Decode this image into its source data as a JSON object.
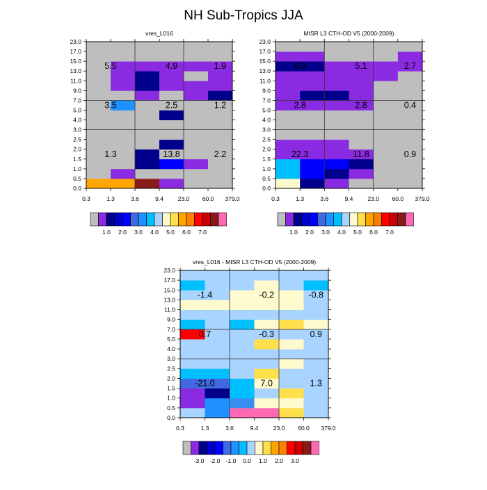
{
  "title": "NH Sub-Tropics JJA",
  "x_tick_labels": [
    "0.3",
    "1.3",
    "3.6",
    "9.4",
    "23.0",
    "60.0",
    "379.0"
  ],
  "y_tick_labels": [
    "0.0",
    "0.5",
    "1.0",
    "1.5",
    "2.0",
    "2.5",
    "3.0",
    "4.0",
    "5.0",
    "7.0",
    "9.0",
    "11.0",
    "13.0",
    "15.0",
    "17.0",
    "23.0"
  ],
  "chart_data": [
    {
      "type": "heatmap",
      "title": "vres_L016",
      "xlabel": "",
      "ylabel": "",
      "x_bins": [
        "0.3",
        "1.3",
        "3.6",
        "9.4",
        "23.0",
        "60.0",
        "379.0"
      ],
      "y_bins": [
        "0.0",
        "0.5",
        "1.0",
        "1.5",
        "2.0",
        "2.5",
        "3.0",
        "4.0",
        "5.0",
        "7.0",
        "9.0",
        "11.0",
        "13.0",
        "15.0",
        "17.0",
        "23.0"
      ],
      "colormap": "abs",
      "cells": [
        [
          "orange",
          "orange",
          "darkred",
          "purple",
          "gray",
          "gray"
        ],
        [
          "gray",
          "purple",
          "gray",
          "gray",
          "gray",
          "gray"
        ],
        [
          "gray",
          "gray",
          "navy",
          "blue",
          "purple",
          "gray"
        ],
        [
          "gray",
          "gray",
          "navy",
          "gray",
          "gray",
          "gray"
        ],
        [
          "gray",
          "gray",
          "gray",
          "navy",
          "gray",
          "gray"
        ],
        [
          "gray",
          "gray",
          "gray",
          "gray",
          "gray",
          "gray"
        ],
        [
          "gray",
          "gray",
          "gray",
          "gray",
          "gray",
          "gray"
        ],
        [
          "gray",
          "gray",
          "gray",
          "navy",
          "gray",
          "gray"
        ],
        [
          "gray",
          "dodger",
          "gray",
          "gray",
          "gray",
          "gray"
        ],
        [
          "gray",
          "gray",
          "purple",
          "gray",
          "purple",
          "navy"
        ],
        [
          "gray",
          "purple",
          "navy",
          "purple",
          "purple",
          "purple"
        ],
        [
          "gray",
          "purple",
          "navy",
          "purple",
          "gray",
          "purple"
        ],
        [
          "gray",
          "purple",
          "purple",
          "purple",
          "purple",
          "purple"
        ],
        [
          "gray",
          "gray",
          "gray",
          "gray",
          "gray",
          "gray"
        ],
        [
          "gray",
          "gray",
          "gray",
          "gray",
          "gray",
          "gray"
        ]
      ],
      "region_values": [
        {
          "label": "5.5",
          "col": 0.5,
          "row": 12
        },
        {
          "label": "4.9",
          "col": 3,
          "row": 12
        },
        {
          "label": "1.9",
          "col": 5,
          "row": 12
        },
        {
          "label": "3.5",
          "col": 0.5,
          "row": 8
        },
        {
          "label": "2.5",
          "col": 3,
          "row": 8
        },
        {
          "label": "1.2",
          "col": 5,
          "row": 8
        },
        {
          "label": "1.3",
          "col": 0.5,
          "row": 3
        },
        {
          "label": "13.8",
          "col": 3,
          "row": 3
        },
        {
          "label": "2.2",
          "col": 5,
          "row": 3
        }
      ]
    },
    {
      "type": "heatmap",
      "title": "MISR L3 CTH-OD V5 (2000-2009)",
      "xlabel": "",
      "ylabel": "",
      "x_bins": [
        "0.3",
        "1.3",
        "3.6",
        "9.4",
        "23.0",
        "60.0",
        "379.0"
      ],
      "y_bins": [
        "0.0",
        "0.5",
        "1.0",
        "1.5",
        "2.0",
        "2.5",
        "3.0",
        "4.0",
        "5.0",
        "7.0",
        "9.0",
        "11.0",
        "13.0",
        "15.0",
        "17.0",
        "23.0"
      ],
      "colormap": "abs",
      "cells": [
        [
          "lightyellow",
          "navy",
          "purple",
          "gray",
          "gray",
          "gray"
        ],
        [
          "deepsky",
          "blue",
          "navy",
          "purple",
          "gray",
          "gray"
        ],
        [
          "deepsky",
          "blue",
          "blue",
          "navy",
          "gray",
          "gray"
        ],
        [
          "purple",
          "purple",
          "purple",
          "purple",
          "gray",
          "gray"
        ],
        [
          "purple",
          "purple",
          "purple",
          "gray",
          "gray",
          "gray"
        ],
        [
          "gray",
          "gray",
          "gray",
          "gray",
          "gray",
          "gray"
        ],
        [
          "gray",
          "gray",
          "gray",
          "gray",
          "gray",
          "gray"
        ],
        [
          "gray",
          "gray",
          "gray",
          "gray",
          "gray",
          "gray"
        ],
        [
          "purple",
          "purple",
          "purple",
          "purple",
          "gray",
          "gray"
        ],
        [
          "purple",
          "navy",
          "navy",
          "purple",
          "gray",
          "gray"
        ],
        [
          "purple",
          "purple",
          "purple",
          "purple",
          "gray",
          "gray"
        ],
        [
          "purple",
          "purple",
          "purple",
          "purple",
          "purple",
          "gray"
        ],
        [
          "navy",
          "navy",
          "purple",
          "purple",
          "purple",
          "purple"
        ],
        [
          "purple",
          "purple",
          "gray",
          "gray",
          "gray",
          "purple"
        ],
        [
          "gray",
          "gray",
          "gray",
          "gray",
          "gray",
          "gray"
        ]
      ],
      "region_values": [
        {
          "label": "6.9",
          "col": 0.5,
          "row": 12
        },
        {
          "label": "5.1",
          "col": 3,
          "row": 12
        },
        {
          "label": "2.7",
          "col": 5,
          "row": 12
        },
        {
          "label": "2.8",
          "col": 0.5,
          "row": 8
        },
        {
          "label": "2.8",
          "col": 3,
          "row": 8
        },
        {
          "label": "0.4",
          "col": 5,
          "row": 8
        },
        {
          "label": "22.3",
          "col": 0.5,
          "row": 3
        },
        {
          "label": "11.8",
          "col": 3,
          "row": 3
        },
        {
          "label": "0.9",
          "col": 5,
          "row": 3
        }
      ]
    },
    {
      "type": "heatmap",
      "title": "vres_L016 - MISR L3 CTH-OD V5 (2000-2009)",
      "xlabel": "",
      "ylabel": "",
      "x_bins": [
        "0.3",
        "1.3",
        "3.6",
        "9.4",
        "23.0",
        "60.0",
        "379.0"
      ],
      "y_bins": [
        "0.0",
        "0.5",
        "1.0",
        "1.5",
        "2.0",
        "2.5",
        "3.0",
        "4.0",
        "5.0",
        "7.0",
        "9.0",
        "11.0",
        "13.0",
        "15.0",
        "17.0",
        "23.0"
      ],
      "colormap": "diff",
      "cells": [
        [
          "lightblue",
          "dodger",
          "pink",
          "pink",
          "gold",
          "lightblue"
        ],
        [
          "purple",
          "dodger",
          "cornflower",
          "lightyellow",
          "lightyellow",
          "lightblue"
        ],
        [
          "purple",
          "navy",
          "deepsky",
          "lightblue",
          "gold",
          "lightblue"
        ],
        [
          "royal",
          "royal",
          "deepsky",
          "lightyellow",
          "lightblue",
          "lightblue"
        ],
        [
          "deepsky",
          "deepsky",
          "lightblue",
          "gold",
          "lightblue",
          "lightblue"
        ],
        [
          "lightblue",
          "lightblue",
          "lightblue",
          "lightblue",
          "lightyellow",
          "lightblue"
        ],
        [
          "lightblue",
          "lightblue",
          "lightblue",
          "lightblue",
          "lightblue",
          "lightblue"
        ],
        [
          "lightblue",
          "lightblue",
          "lightblue",
          "gold",
          "lightyellow",
          "lightblue"
        ],
        [
          "red",
          "lightblue",
          "lightblue",
          "lightblue",
          "lightblue",
          "lightblue"
        ],
        [
          "deepsky",
          "lightblue",
          "deepsky",
          "lightyellow",
          "gold",
          "lightyellow"
        ],
        [
          "lightblue",
          "lightblue",
          "lightblue",
          "lightblue",
          "lightblue",
          "lightblue"
        ],
        [
          "lightyellow",
          "lightyellow",
          "lightyellow",
          "lightyellow",
          "lightyellow",
          "lightblue"
        ],
        [
          "lightblue",
          "lightblue",
          "lightyellow",
          "lightyellow",
          "lightyellow",
          "lightblue"
        ],
        [
          "deepsky",
          "lightblue",
          "lightblue",
          "lightyellow",
          "lightblue",
          "deepsky"
        ],
        [
          "lightblue",
          "lightblue",
          "lightblue",
          "lightblue",
          "lightblue",
          "lightblue"
        ]
      ],
      "region_values": [
        {
          "label": "-1.4",
          "col": 0.5,
          "row": 12
        },
        {
          "label": "-0.2",
          "col": 3,
          "row": 12
        },
        {
          "label": "-0.8",
          "col": 5,
          "row": 12
        },
        {
          "label": "0.7",
          "col": 0.5,
          "row": 8
        },
        {
          "label": "-0.3",
          "col": 3,
          "row": 8
        },
        {
          "label": "0.9",
          "col": 5,
          "row": 8
        },
        {
          "label": "-21.0",
          "col": 0.5,
          "row": 3
        },
        {
          "label": "7.0",
          "col": 3,
          "row": 3
        },
        {
          "label": "1.3",
          "col": 5,
          "row": 3
        }
      ]
    }
  ],
  "colors": {
    "gray": "#bebebe",
    "purple": "#8a2be2",
    "navy": "#00008b",
    "darkblue2": "#0000cd",
    "blue": "#0000ff",
    "royal": "#4169e1",
    "dodger": "#1e90ff",
    "cornflower": "#3a8ef0",
    "deepsky": "#00bfff",
    "lightblue": "#a8d4ff",
    "lightyellow": "#fffacd",
    "gold": "#ffe04b",
    "orange": "#ffa500",
    "darkorange": "#ff7f00",
    "red": "#ff0000",
    "firebrick": "#cd0000",
    "darkred": "#8b1a1a",
    "pink": "#ff69b4"
  },
  "colorbars": {
    "abs": {
      "swatches": [
        "gray",
        "purple",
        "navy",
        "darkblue2",
        "blue",
        "royal",
        "dodger",
        "deepsky",
        "lightblue",
        "lightyellow",
        "gold",
        "orange",
        "darkorange",
        "red",
        "firebrick",
        "darkred",
        "pink"
      ],
      "labels": [
        "1.0",
        "2.0",
        "3.0",
        "4.0",
        "5.0",
        "6.0",
        "7.0"
      ]
    },
    "diff": {
      "swatches": [
        "gray",
        "purple",
        "navy",
        "darkblue2",
        "blue",
        "royal",
        "dodger",
        "deepsky",
        "lightblue",
        "lightyellow",
        "gold",
        "orange",
        "darkorange",
        "red",
        "firebrick",
        "darkred",
        "pink"
      ],
      "labels": [
        "-3.0",
        "-2.0",
        "-1.0",
        "0.0",
        "1.0",
        "2.0",
        "3.0"
      ]
    }
  }
}
